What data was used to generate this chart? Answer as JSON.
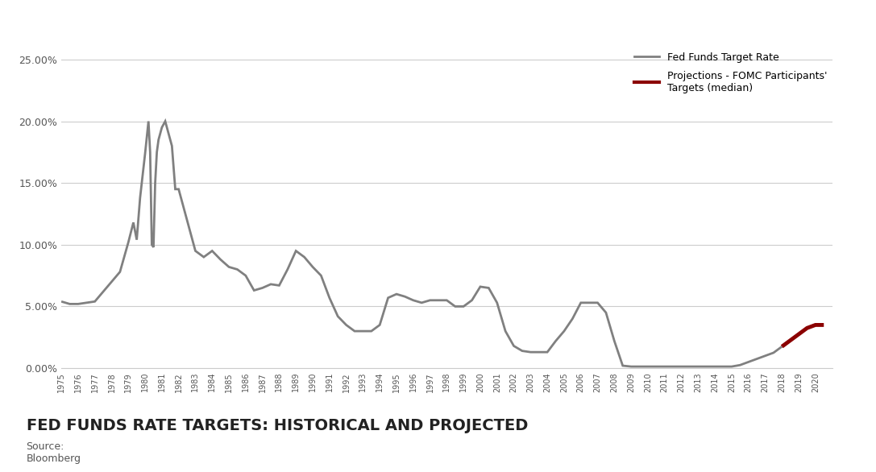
{
  "title": "FED FUNDS RATE TARGETS: HISTORICAL AND PROJECTED",
  "source": "Source:\nBloomberg",
  "legend_label1": "Fed Funds Target Rate",
  "legend_label2": "Projections - FOMC Participants'\nTargets (median)",
  "line_color": "#808080",
  "proj_color": "#8B0000",
  "background_color": "#ffffff",
  "bar_color": "#8B1A1A",
  "ylim": [
    0.0,
    0.26
  ],
  "yticks": [
    0.0,
    0.05,
    0.1,
    0.15,
    0.2,
    0.25
  ],
  "ytick_labels": [
    "0.00%",
    "5.00%",
    "10.00%",
    "15.00%",
    "20.00%",
    "25.00%"
  ],
  "historical_data": {
    "years": [
      1975.0,
      1975.5,
      1976.0,
      1976.5,
      1977.0,
      1977.5,
      1978.0,
      1978.5,
      1979.0,
      1979.3,
      1979.5,
      1979.7,
      1980.0,
      1980.2,
      1980.3,
      1980.4,
      1980.5,
      1980.6,
      1980.7,
      1980.8,
      1981.0,
      1981.2,
      1981.4,
      1981.6,
      1981.8,
      1982.0,
      1982.5,
      1983.0,
      1983.5,
      1984.0,
      1984.5,
      1985.0,
      1985.5,
      1986.0,
      1986.5,
      1987.0,
      1987.5,
      1988.0,
      1988.5,
      1989.0,
      1989.5,
      1990.0,
      1990.5,
      1991.0,
      1991.5,
      1992.0,
      1992.5,
      1993.0,
      1993.5,
      1994.0,
      1994.5,
      1995.0,
      1995.5,
      1996.0,
      1996.5,
      1997.0,
      1997.5,
      1998.0,
      1998.5,
      1999.0,
      1999.5,
      2000.0,
      2000.5,
      2001.0,
      2001.5,
      2002.0,
      2002.5,
      2003.0,
      2003.5,
      2004.0,
      2004.5,
      2005.0,
      2005.5,
      2006.0,
      2006.5,
      2007.0,
      2007.5,
      2008.0,
      2008.5,
      2009.0,
      2009.5,
      2010.0,
      2010.5,
      2011.0,
      2011.5,
      2012.0,
      2012.5,
      2013.0,
      2013.5,
      2014.0,
      2014.5,
      2015.0,
      2015.5,
      2016.0,
      2016.5,
      2017.0,
      2017.5,
      2018.0
    ],
    "values": [
      0.054,
      0.052,
      0.052,
      0.053,
      0.054,
      0.062,
      0.07,
      0.078,
      0.102,
      0.118,
      0.104,
      0.138,
      0.174,
      0.2,
      0.175,
      0.1,
      0.098,
      0.15,
      0.175,
      0.185,
      0.195,
      0.2,
      0.19,
      0.18,
      0.145,
      0.145,
      0.12,
      0.095,
      0.09,
      0.095,
      0.088,
      0.082,
      0.08,
      0.075,
      0.063,
      0.065,
      0.068,
      0.067,
      0.08,
      0.095,
      0.09,
      0.082,
      0.075,
      0.057,
      0.042,
      0.035,
      0.03,
      0.03,
      0.03,
      0.035,
      0.057,
      0.06,
      0.058,
      0.055,
      0.053,
      0.055,
      0.055,
      0.055,
      0.05,
      0.05,
      0.055,
      0.066,
      0.065,
      0.053,
      0.03,
      0.018,
      0.014,
      0.013,
      0.013,
      0.013,
      0.022,
      0.03,
      0.04,
      0.053,
      0.053,
      0.053,
      0.045,
      0.022,
      0.002,
      0.0013,
      0.0013,
      0.0013,
      0.0013,
      0.0013,
      0.0013,
      0.0013,
      0.0013,
      0.0013,
      0.0013,
      0.0013,
      0.0013,
      0.0013,
      0.0025,
      0.005,
      0.0075,
      0.01,
      0.0125,
      0.0175
    ]
  },
  "projected_data": {
    "years": [
      2018.0,
      2018.5,
      2019.0,
      2019.5,
      2020.0,
      2020.5
    ],
    "values": [
      0.0175,
      0.0225,
      0.0275,
      0.0325,
      0.035,
      0.035
    ]
  }
}
